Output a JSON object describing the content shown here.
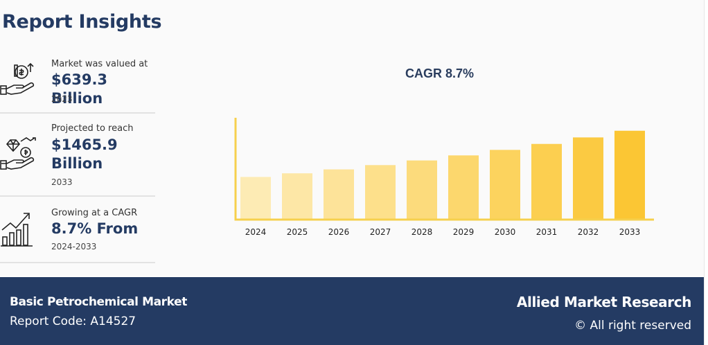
{
  "header": {
    "title": "Report Insights"
  },
  "insights": [
    {
      "icon": "money-hand-icon",
      "label": "Market was valued at",
      "value": "$639.3 Billion",
      "sub": "2023"
    },
    {
      "icon": "diamond-coin-hand-icon",
      "label": "Projected to reach",
      "value_line1": "$1465.9",
      "value_line2": "Billion",
      "sub": "2033"
    },
    {
      "icon": "growth-bars-icon",
      "label": "Growing at a CAGR",
      "value": "8.7% From",
      "sub": "2024-2033"
    }
  ],
  "chart_data": {
    "type": "bar",
    "title": "CAGR 8.7%",
    "categories": [
      "2024",
      "2025",
      "2026",
      "2027",
      "2028",
      "2029",
      "2030",
      "2031",
      "2032",
      "2033"
    ],
    "values": [
      694.9,
      755.4,
      821.1,
      892.6,
      970.3,
      1054.7,
      1146.5,
      1246.2,
      1354.6,
      1465.9
    ],
    "colors": [
      "#fdebb4",
      "#fde7a6",
      "#fde399",
      "#fde08b",
      "#fcdb7c",
      "#fcd76d",
      "#fcd35e",
      "#fccf50",
      "#fbca42",
      "#fbc634"
    ],
    "axis_color": "#f6d04d",
    "ylim": [
      0,
      1700
    ],
    "xlabel": "",
    "ylabel": "",
    "grid": false
  },
  "footer": {
    "report_name": "Basic Petrochemical Market",
    "report_code": "Report Code: A14527",
    "brand": "Allied Market Research",
    "rights": "© All right reserved"
  }
}
